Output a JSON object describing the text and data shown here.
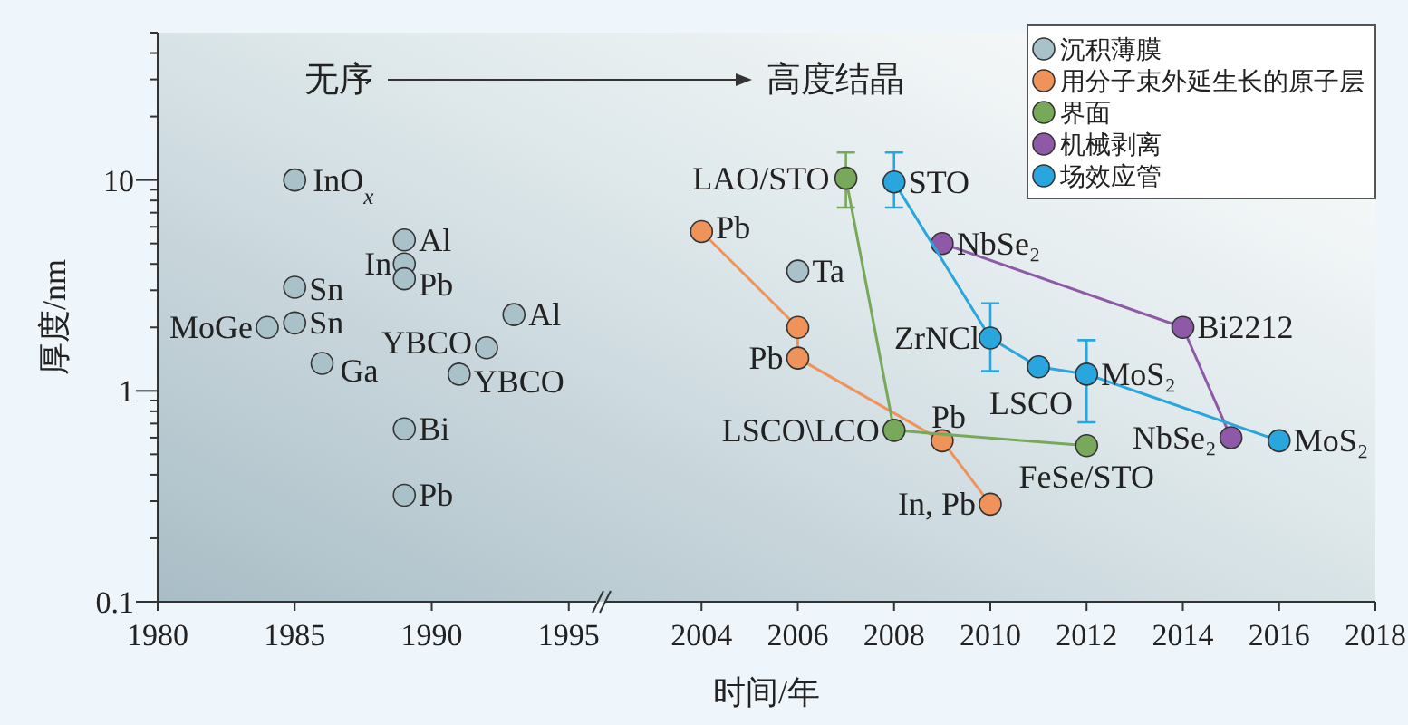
{
  "chart_data": [
    {
      "type": "scatter",
      "ylabel": "厚度/nm",
      "log": true,
      "marker": "circle",
      "xlim": [
        1980,
        1996
      ],
      "xticks": [
        1980,
        1985,
        1990,
        1995
      ],
      "ylim": [
        0.1,
        50
      ],
      "yticks": [
        0.1,
        {
          "value": 0.2,
          "label": null
        },
        {
          "value": 0.3,
          "label": null
        },
        {
          "value": 0.4,
          "label": null
        },
        {
          "value": 0.5,
          "label": null
        },
        {
          "value": 0.6,
          "label": null
        },
        {
          "value": 0.7,
          "label": null
        },
        {
          "value": 0.8,
          "label": null
        },
        {
          "value": 0.9,
          "label": null
        },
        1,
        {
          "value": 2,
          "label": null
        },
        {
          "value": 3,
          "label": null
        },
        {
          "value": 4,
          "label": null
        },
        {
          "value": 5,
          "label": null
        },
        {
          "value": 6,
          "label": null
        },
        {
          "value": 7,
          "label": null
        },
        {
          "value": 8,
          "label": null
        },
        {
          "value": 9,
          "label": null
        },
        10,
        {
          "value": 20,
          "label": null
        },
        {
          "value": 30,
          "label": null
        },
        {
          "value": 40,
          "label": null
        },
        {
          "value": 50,
          "label": null
        }
      ],
      "series": [
        {
          "color": "#a9c2c9",
          "x": [
            1985,
            1989,
            1989,
            1989,
            1985,
            1985,
            1984,
            1986,
            1992,
            1991,
            1993,
            1989,
            1989
          ],
          "values": [
            10,
            5.2,
            4.0,
            3.4,
            3.1,
            2.1,
            2.0,
            1.35,
            1.6,
            1.2,
            2.3,
            0.66,
            0.32
          ]
        }
      ],
      "annotations": [
        "无序",
        {
          "text": "InO$_{x}$",
          "x": 1985,
          "y": 10
        },
        {
          "text": "Al",
          "x": 1989,
          "y": 5.2
        },
        {
          "text": "In",
          "x": 1989,
          "y": 4.0
        },
        {
          "text": "Pb",
          "x": 1989,
          "y": 3.4
        },
        {
          "text": "Sn",
          "x": 1985,
          "y": 3.1
        },
        {
          "text": "Sn",
          "x": 1985,
          "y": 2.1
        },
        {
          "text": "MoGe",
          "x": 1984,
          "y": 2.0
        },
        {
          "text": "Ga",
          "x": 1986,
          "y": 1.35
        },
        {
          "text": "YBCO",
          "x": 1992,
          "y": 1.6
        },
        {
          "text": "YBCO",
          "x": 1991,
          "y": 1.2
        },
        {
          "text": "Al",
          "x": 1993,
          "y": 2.3
        },
        {
          "text": "Bi",
          "x": 1989,
          "y": 0.66
        },
        {
          "text": "Pb",
          "x": 1989,
          "y": 0.32
        }
      ]
    },
    {
      "type": "line",
      "xlabel": "时间/年",
      "log": true,
      "marker": "circle",
      "tick_labels": "x",
      "legend": "top right",
      "xlim": [
        2002,
        2018
      ],
      "xticks": [
        2004,
        2006,
        2008,
        2010,
        2012,
        2014,
        2016,
        2018
      ],
      "ylim": [
        0.1,
        50
      ],
      "series": [
        {
          "name": "沉积薄膜",
          "type": "scatter",
          "color": "#a9c2c9",
          "x": [
            2006
          ],
          "values": [
            3.7
          ]
        },
        {
          "name": "用分子束外延生长的原子层",
          "color": "#f0935a",
          "x": [
            2004,
            2006,
            2006,
            2009,
            2010
          ],
          "values": [
            5.7,
            2.0,
            1.43,
            0.58,
            0.29
          ]
        },
        {
          "name": "界面",
          "color": "#78a95a",
          "x": [
            2007,
            2008,
            2012
          ],
          "values": [
            10.2,
            0.65,
            0.55
          ],
          "errors": [
            [
              7.4,
              13.5
            ],
            null,
            null
          ]
        },
        {
          "name": "机械剥离",
          "color": "#8e5aa8",
          "x": [
            2009,
            2014,
            2015
          ],
          "values": [
            5.0,
            2.0,
            0.6
          ]
        },
        {
          "name": "场效应管",
          "color": "#2aa6de",
          "x": [
            2008,
            2010,
            2011,
            2012,
            2016
          ],
          "values": [
            9.8,
            1.78,
            1.3,
            1.2,
            0.58
          ],
          "errors": [
            [
              7.4,
              13.5
            ],
            [
              1.24,
              2.6
            ],
            null,
            [
              0.71,
              1.74
            ],
            null
          ]
        }
      ],
      "annotations": [
        "高度结晶",
        {
          "text": "Ta",
          "x": 2006,
          "y": 3.7
        },
        {
          "text": "Pb",
          "x": 2004,
          "y": 5.7
        },
        {
          "text": "Pb",
          "x": 2006,
          "y": 1.43
        },
        {
          "text": "Pb",
          "x": 2009,
          "y": 0.58
        },
        {
          "text": "In, Pb",
          "x": 2010,
          "y": 0.29
        },
        {
          "text": "LAO/STO",
          "x": 2007,
          "y": 10.2
        },
        {
          "text": "LSCO\\LCO",
          "x": 2008,
          "y": 0.65
        },
        {
          "text": "FeSe/STO",
          "x": 2012,
          "y": 0.55
        },
        {
          "text": "NbSe₂",
          "x": 2009,
          "y": 5.0
        },
        {
          "text": "Bi2212",
          "x": 2014,
          "y": 2.0
        },
        {
          "text": "NbSe₂",
          "x": 2015,
          "y": 0.6
        },
        {
          "text": "STO",
          "x": 2008,
          "y": 9.8
        },
        {
          "text": "ZrNCl",
          "x": 2010,
          "y": 1.78
        },
        {
          "text": "LSCO",
          "x": 2011,
          "y": 1.3
        },
        {
          "text": "MoS₂",
          "x": 2012,
          "y": 1.2
        },
        {
          "text": "MoS₂",
          "x": 2016,
          "y": 0.58
        }
      ]
    }
  ]
}
